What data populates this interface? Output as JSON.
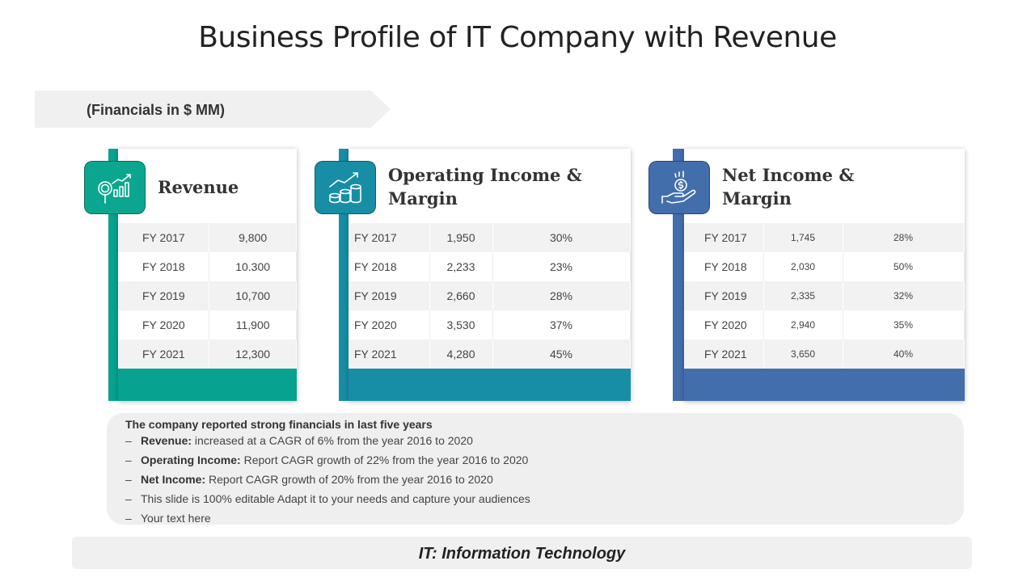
{
  "title": "Business Profile of IT Company with Revenue",
  "financials_label": "(Financials in $ MM)",
  "colors": {
    "teal_green": "#08a290",
    "teal_blue": "#178ea6",
    "blue": "#436eac"
  },
  "cards": [
    {
      "heading_lines": [
        "Revenue"
      ],
      "icon": "magnifier-growth-chart-icon",
      "rows": [
        [
          "FY 2017",
          "9,800"
        ],
        [
          "FY 2018",
          "10.300"
        ],
        [
          "FY 2019",
          "10,700"
        ],
        [
          "FY 2020",
          "11,900"
        ],
        [
          "FY 2021",
          "12,300"
        ]
      ]
    },
    {
      "heading_lines": [
        "Operating Income &",
        "Margin"
      ],
      "icon": "coins-growth-arrow-icon",
      "rows": [
        [
          "FY 2017",
          "1,950",
          "30%"
        ],
        [
          "FY 2018",
          "2,233",
          "23%"
        ],
        [
          "FY 2019",
          "2,660",
          "28%"
        ],
        [
          "FY 2020",
          "3,530",
          "37%"
        ],
        [
          "FY 2021",
          "4,280",
          "45%"
        ]
      ]
    },
    {
      "heading_lines": [
        "Net Income &",
        "Margin"
      ],
      "icon": "hand-coin-icon",
      "rows": [
        [
          "FY 2017",
          "1,745",
          "28%"
        ],
        [
          "FY 2018",
          "2,030",
          "50%"
        ],
        [
          "FY 2019",
          "2,335",
          "32%"
        ],
        [
          "FY 2020",
          "2,940",
          "35%"
        ],
        [
          "FY 2021",
          "3,650",
          "40%"
        ]
      ]
    }
  ],
  "summary": {
    "heading": "The company reported strong financials in last five years",
    "bullets": [
      {
        "label": "Revenue:",
        "text": " increased at a CAGR of 6% from the year 2016 to 2020"
      },
      {
        "label": "Operating Income:",
        "text": " Report CAGR growth of 22% from the year 2016 to 2020"
      },
      {
        "label": "Net Income:",
        "text": " Report CAGR growth of 20% from the year 2016 to 2020"
      },
      {
        "label": "",
        "text": "This slide is 100% editable Adapt it to your needs and capture your audiences"
      },
      {
        "label": "",
        "text": "Your text here"
      }
    ]
  },
  "note": "IT: Information Technology"
}
